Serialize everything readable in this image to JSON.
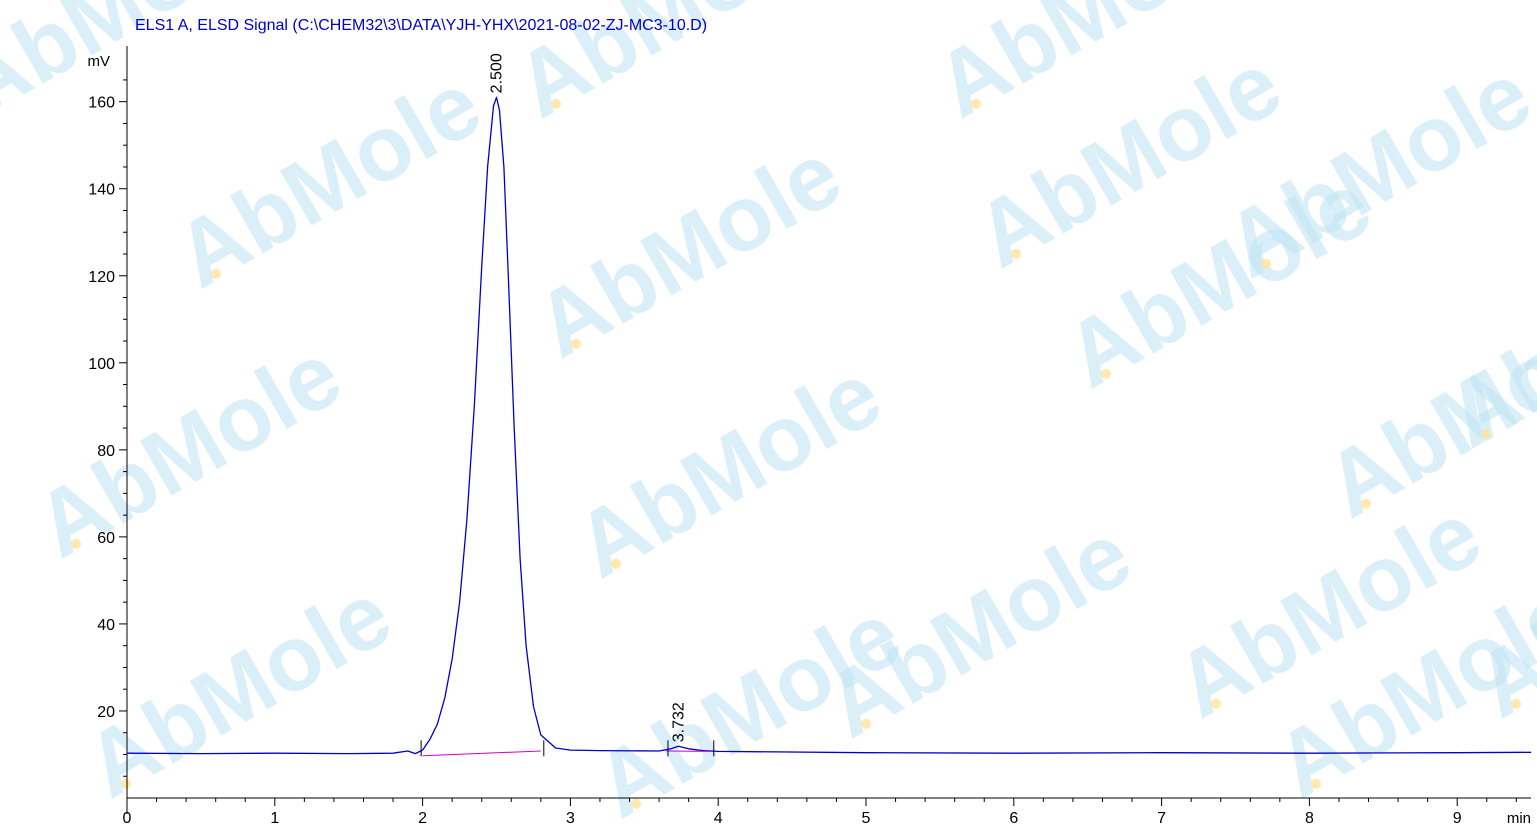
{
  "chart_data": {
    "type": "line",
    "title": "ELS1 A, ELSD Signal (C:\\CHEM32\\3\\DATA\\YJH-YHX\\2021-08-02-ZJ-MC3-10.D)",
    "xlabel": "min",
    "ylabel": "mV",
    "xlim": [
      0,
      9.5
    ],
    "ylim": [
      0,
      170
    ],
    "x_ticks": [
      0,
      1,
      2,
      3,
      4,
      5,
      6,
      7,
      8,
      9
    ],
    "y_ticks": [
      20,
      40,
      60,
      80,
      100,
      120,
      140,
      160
    ],
    "grid": false,
    "legend": "none",
    "series": [
      {
        "color": "#0000cc",
        "x": [
          0,
          0.5,
          1.0,
          1.5,
          1.8,
          1.9,
          1.95,
          2.0,
          2.05,
          2.1,
          2.15,
          2.2,
          2.25,
          2.3,
          2.35,
          2.4,
          2.44,
          2.48,
          2.5,
          2.52,
          2.55,
          2.58,
          2.62,
          2.66,
          2.7,
          2.75,
          2.8,
          2.9,
          3.0,
          3.2,
          3.6,
          3.68,
          3.732,
          3.8,
          3.9,
          4.0,
          5.0,
          6.0,
          7.0,
          8.0,
          9.0,
          9.5
        ],
        "y": [
          10.3,
          10.2,
          10.3,
          10.2,
          10.3,
          10.8,
          10.2,
          11.0,
          13.5,
          17.0,
          23.0,
          32.0,
          45.0,
          64.0,
          90.0,
          122.0,
          145.0,
          159.0,
          161.0,
          158.0,
          145.0,
          120.0,
          85.0,
          55.0,
          35.0,
          21.0,
          14.5,
          11.5,
          11.0,
          10.9,
          10.8,
          11.3,
          11.9,
          11.3,
          10.9,
          10.7,
          10.4,
          10.3,
          10.4,
          10.3,
          10.4,
          10.5
        ]
      },
      {
        "color": "#cc00cc",
        "x": [
          2.0,
          2.8
        ],
        "y": [
          9.7,
          10.8
        ]
      },
      {
        "color": "#cc00cc",
        "x": [
          3.65,
          3.95
        ],
        "y": [
          10.8,
          10.7
        ]
      }
    ],
    "annotations": [
      {
        "text": "2.500",
        "x": 2.5,
        "y": 161.0
      },
      {
        "text": "3.732",
        "x": 3.732,
        "y": 11.9
      }
    ],
    "baseline_marks": [
      1.99,
      2.82,
      3.66,
      3.97
    ],
    "watermark": {
      "text": "AbMole",
      "color": "#bfe3f3",
      "accent": "#ffe49a"
    }
  }
}
